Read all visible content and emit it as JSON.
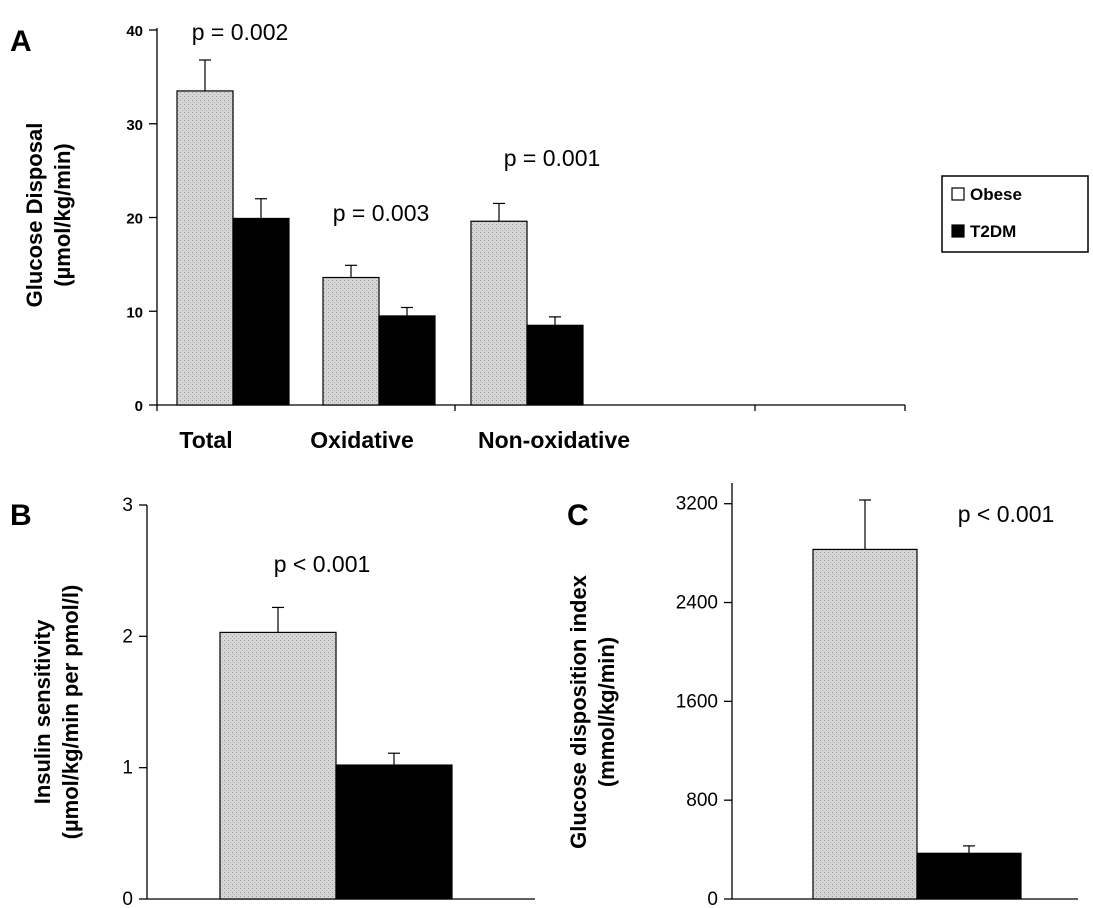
{
  "colors": {
    "obese": "#d2d2d2",
    "t2dm": "#000000",
    "axis": "#000000"
  },
  "legend": {
    "placement": "right",
    "items": [
      "Obese",
      "T2DM"
    ]
  },
  "chart_data": [
    {
      "panel": "A",
      "type": "bar",
      "ylabel_line1": "Glucose Disposal",
      "ylabel_line2": "(µmol/kg/min)",
      "ylim": [
        0,
        40
      ],
      "yticks": [
        "0",
        "10",
        "20",
        "30",
        "40"
      ],
      "categories": [
        "Total",
        "Oxidative",
        "Non-oxidative"
      ],
      "series": [
        {
          "name": "Obese",
          "values": [
            33.5,
            13.6,
            19.6
          ],
          "errors": [
            3.3,
            1.3,
            1.9
          ]
        },
        {
          "name": "T2DM",
          "values": [
            19.9,
            9.5,
            8.5
          ],
          "errors": [
            2.1,
            0.9,
            0.9
          ]
        }
      ],
      "annotations": [
        "p = 0.002",
        "p = 0.003",
        "p = 0.001"
      ]
    },
    {
      "panel": "B",
      "type": "bar",
      "ylabel_line1": "Insulin sensitivity",
      "ylabel_line2": "(µmol/kg/min per pmol/l)",
      "ylim": [
        0,
        3
      ],
      "yticks": [
        "0",
        "1",
        "2",
        "3"
      ],
      "series": [
        {
          "name": "Obese",
          "values": [
            2.03
          ],
          "errors": [
            0.19
          ]
        },
        {
          "name": "T2DM",
          "values": [
            1.02
          ],
          "errors": [
            0.09
          ]
        }
      ],
      "annotations": [
        "p < 0.001"
      ]
    },
    {
      "panel": "C",
      "type": "bar",
      "ylabel_line1": "Glucose disposition index",
      "ylabel_line2": "(mmol/kg/min)",
      "ylim": [
        0,
        3400
      ],
      "yticks": [
        "0",
        "800",
        "1600",
        "2400",
        "3200"
      ],
      "series": [
        {
          "name": "Obese",
          "values": [
            2830
          ],
          "errors": [
            400
          ]
        },
        {
          "name": "T2DM",
          "values": [
            370
          ],
          "errors": [
            60
          ]
        }
      ],
      "annotations": [
        "p < 0.001"
      ]
    }
  ]
}
